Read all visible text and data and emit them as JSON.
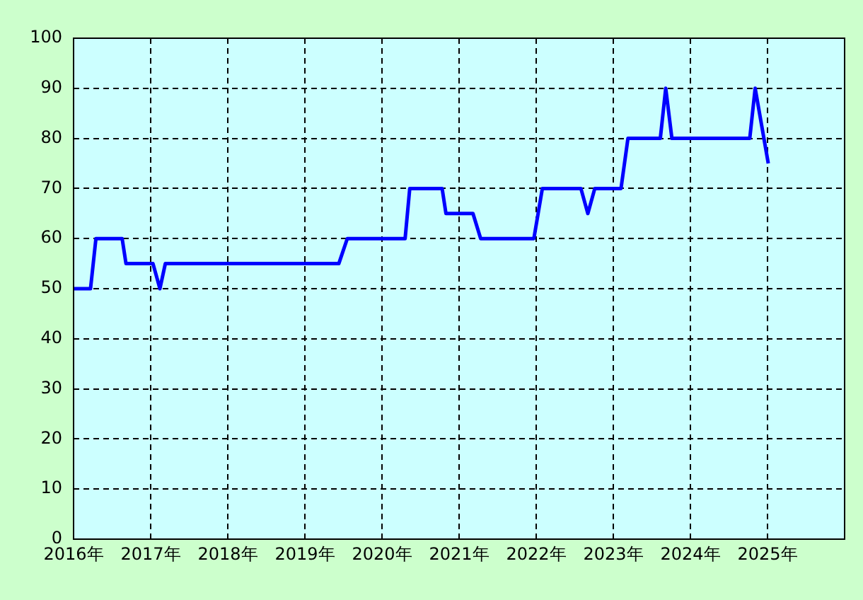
{
  "chart_data": {
    "type": "line",
    "x": [
      2016.0,
      2016.22,
      2016.29,
      2016.63,
      2016.68,
      2017.03,
      2017.12,
      2017.19,
      2019.44,
      2019.55,
      2020.3,
      2020.36,
      2020.78,
      2020.83,
      2021.18,
      2021.28,
      2021.97,
      2022.08,
      2022.58,
      2022.67,
      2022.76,
      2023.1,
      2023.19,
      2023.61,
      2023.68,
      2023.76,
      2024.77,
      2024.84,
      2025.01
    ],
    "series": [
      {
        "color": "#0000ff",
        "values": [
          50,
          50,
          60,
          60,
          55,
          55,
          50,
          55,
          55,
          60,
          60,
          70,
          70,
          65,
          65,
          60,
          60,
          70,
          70,
          65,
          70,
          70,
          80,
          80,
          90,
          80,
          80,
          90,
          75
        ]
      }
    ],
    "xlim": [
      2016,
      2026
    ],
    "xticks": [
      {
        "value": 2016,
        "label": "2016年"
      },
      {
        "value": 2017,
        "label": "2017年"
      },
      {
        "value": 2018,
        "label": "2018年"
      },
      {
        "value": 2019,
        "label": "2019年"
      },
      {
        "value": 2020,
        "label": "2020年"
      },
      {
        "value": 2021,
        "label": "2021年"
      },
      {
        "value": 2022,
        "label": "2022年"
      },
      {
        "value": 2023,
        "label": "2023年"
      },
      {
        "value": 2024,
        "label": "2024年"
      },
      {
        "value": 2025,
        "label": "2025年"
      }
    ],
    "ylim": [
      0,
      100
    ],
    "yticks": [
      0,
      10,
      20,
      30,
      40,
      50,
      60,
      70,
      80,
      90,
      100
    ],
    "grid": true,
    "legend": false,
    "marker": "none",
    "line_style": "solid"
  }
}
